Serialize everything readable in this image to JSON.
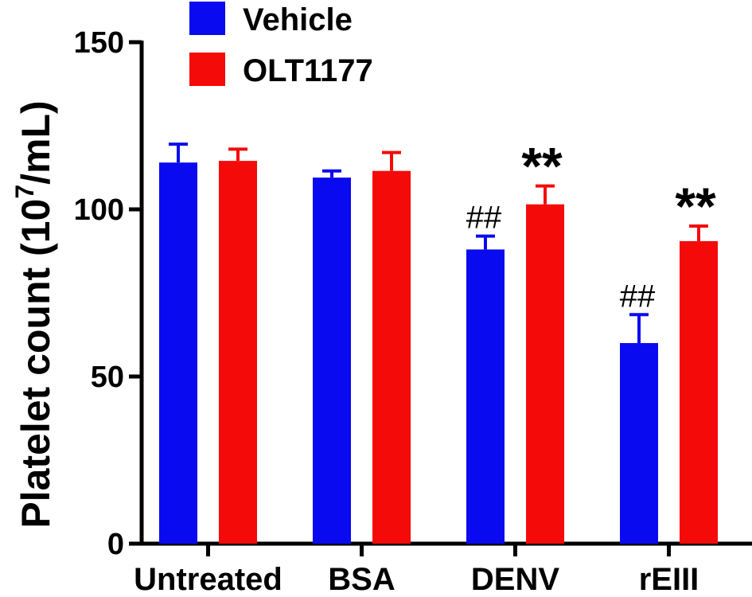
{
  "chart_data": {
    "type": "bar",
    "title": "",
    "xlabel": "",
    "ylabel": "Platelet count (10⁷/mL)",
    "ylabel_parts": {
      "before": "Platelet count (10",
      "sup": "7",
      "after": "/mL)"
    },
    "ylim": [
      0,
      150
    ],
    "yticks": [
      0,
      50,
      100,
      150
    ],
    "categories": [
      "Untreated",
      "BSA",
      "DENV",
      "rEIII"
    ],
    "legend_position": "top-left",
    "series": [
      {
        "name": "Vehicle",
        "color": "#0a0af0",
        "values": [
          114,
          109.5,
          88,
          60
        ],
        "errors": [
          5.5,
          2,
          4,
          8.5
        ],
        "annotations": [
          "",
          "",
          "##",
          "##"
        ]
      },
      {
        "name": "OLT1177",
        "color": "#f50a0a",
        "values": [
          114.5,
          111.5,
          101.5,
          90.5
        ],
        "errors": [
          3.5,
          5.5,
          5.5,
          4.5
        ],
        "annotations": [
          "",
          "",
          "**",
          "**"
        ]
      }
    ]
  }
}
